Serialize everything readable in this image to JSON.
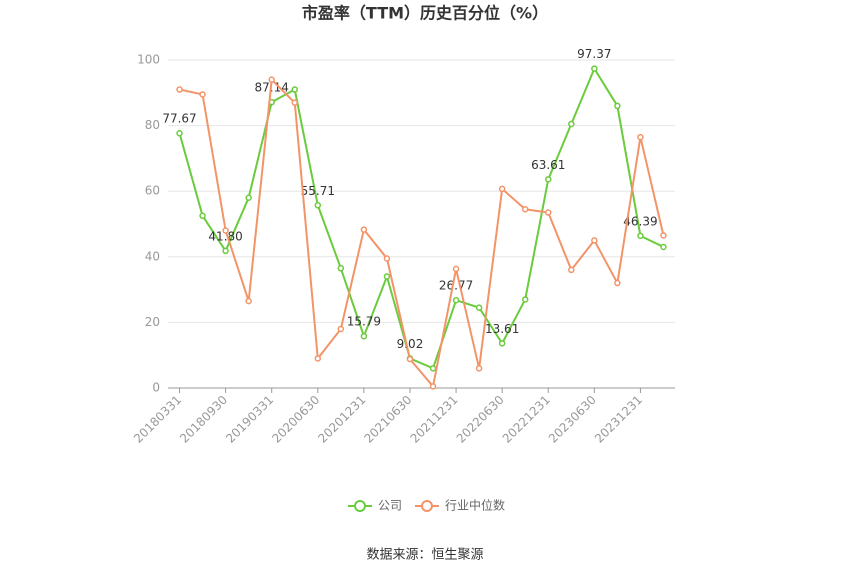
{
  "chart_data": {
    "type": "line",
    "title": "市盈率（TTM）历史百分位（%）",
    "categories": [
      "20180331",
      null,
      "20180930",
      null,
      "20190331",
      null,
      "20200630",
      null,
      "20201231",
      null,
      "20210630",
      null,
      "20211231",
      null,
      "20220630",
      null,
      "20221231",
      null,
      "20230630",
      null,
      "20231231",
      null
    ],
    "series": [
      {
        "name": "公司",
        "color": "#6acb3c",
        "values": [
          77.67,
          52.5,
          41.8,
          58,
          87.14,
          91,
          55.71,
          36.5,
          15.79,
          34,
          9.02,
          6,
          26.77,
          24.5,
          13.61,
          27,
          63.61,
          80.5,
          97.37,
          86,
          46.39,
          43
        ],
        "value_labels": [
          "77.67",
          null,
          "41.80",
          null,
          "87.14",
          null,
          "55.71",
          null,
          "15.79",
          null,
          "9.02",
          null,
          "26.77",
          null,
          "13.61",
          null,
          "63.61",
          null,
          "97.37",
          null,
          "46.39",
          null
        ]
      },
      {
        "name": "行业中位数",
        "color": "#f39468",
        "values": [
          91,
          89.5,
          48,
          26.5,
          94,
          87,
          9,
          18,
          48.3,
          39.5,
          8.8,
          0.5,
          36.3,
          6,
          60.7,
          54.5,
          53.5,
          36,
          45,
          32,
          76.5,
          46.5
        ]
      }
    ],
    "ylim": [
      0,
      100
    ],
    "yticks": [
      0,
      20,
      40,
      60,
      80,
      100
    ],
    "grid": true,
    "source": "数据来源：恒生聚源"
  }
}
